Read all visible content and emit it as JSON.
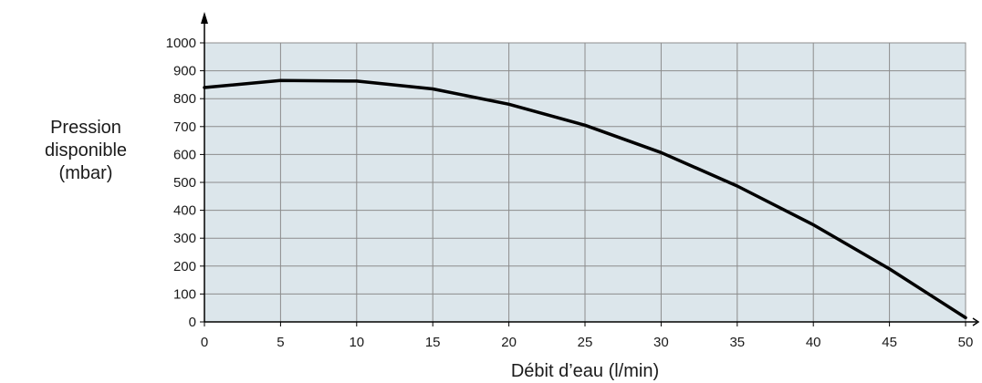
{
  "chart_data": {
    "type": "line",
    "title": "",
    "xlabel": "Débit d’eau (l/min)",
    "ylabel": "Pression\ndisponible\n(mbar)",
    "xlim": [
      0,
      50
    ],
    "ylim": [
      0,
      1000
    ],
    "x_ticks": [
      0,
      5,
      10,
      15,
      20,
      25,
      30,
      35,
      40,
      45,
      50
    ],
    "y_ticks": [
      0,
      100,
      200,
      300,
      400,
      500,
      600,
      700,
      800,
      900,
      1000
    ],
    "grid": true,
    "legend": "none",
    "series": [
      {
        "x": [
          0,
          5,
          10,
          15,
          20,
          25,
          30,
          35,
          40,
          45,
          50
        ],
        "y": [
          840,
          865,
          863,
          835,
          780,
          705,
          607,
          487,
          348,
          190,
          15
        ]
      }
    ],
    "colors": {
      "plot_background": "#dce6eb",
      "grid": "#8c8c8c",
      "line": "#000000",
      "text": "#1a1a1a"
    }
  }
}
